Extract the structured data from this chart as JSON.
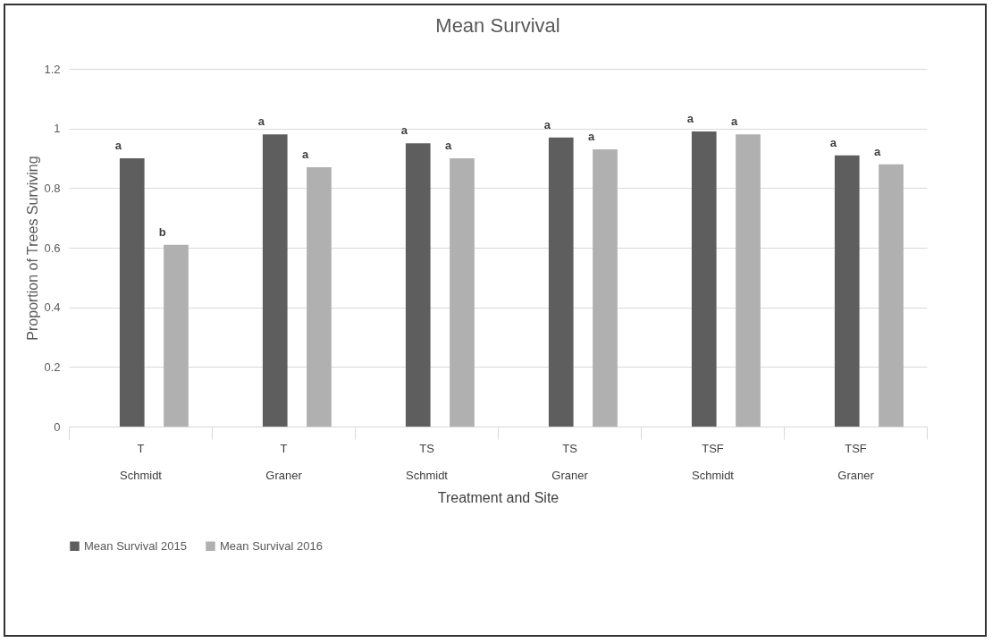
{
  "chart_data": {
    "type": "bar",
    "title": "Mean Survival",
    "xlabel": "Treatment and Site",
    "ylabel": "Proportion of Trees Surviving",
    "categories": [
      "T\nSchmidt",
      "T\nGraner",
      "TS\nSchmidt",
      "TS\nGraner",
      "TSF\nSchmidt",
      "TSF\nGraner"
    ],
    "series": [
      {
        "name": "Mean Survival 2015",
        "color": "#5e5e5e",
        "values": [
          0.9,
          0.98,
          0.95,
          0.97,
          0.99,
          0.91
        ],
        "value_labels": [
          "a",
          "a",
          "a",
          "a",
          "a",
          "a"
        ]
      },
      {
        "name": "Mean Survival 2016",
        "color": "#b0b0b0",
        "values": [
          0.61,
          0.87,
          0.9,
          0.93,
          0.98,
          0.88
        ],
        "value_labels": [
          "b",
          "a",
          "a",
          "a",
          "a",
          "a"
        ]
      }
    ],
    "ylim": [
      0,
      1.2
    ],
    "yticks": [
      0,
      0.2,
      0.4,
      0.6,
      0.8,
      1,
      1.2
    ],
    "grid": "y",
    "legend": "bottom"
  }
}
